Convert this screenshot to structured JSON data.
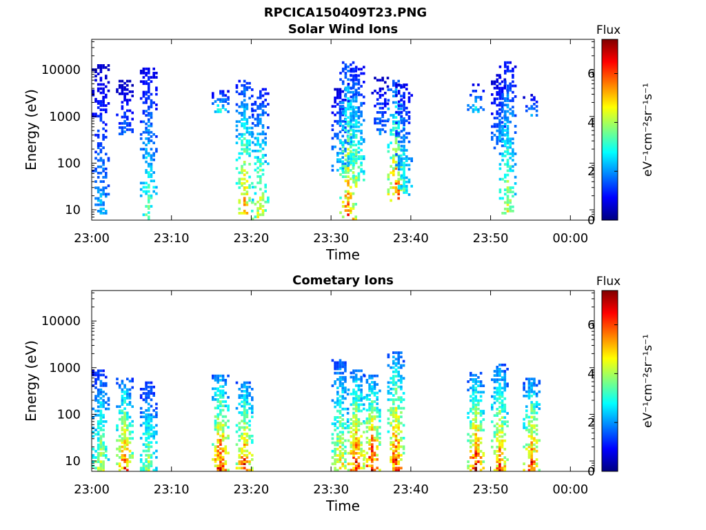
{
  "figure_title": "RPCICA150409T23.PNG",
  "colors": {
    "jet": [
      "#000080",
      "#0000ff",
      "#0080ff",
      "#00ffff",
      "#80ff80",
      "#ffff00",
      "#ff8000",
      "#ff0000",
      "#800000"
    ],
    "frame": "#000000",
    "background": "#ffffff"
  },
  "chart_data": [
    {
      "type": "heatmap",
      "title": "Solar Wind Ions",
      "xlabel": "Time",
      "ylabel": "Energy (eV)",
      "xlim": [
        "23:00",
        "00:03"
      ],
      "xticks": [
        "23:00",
        "23:10",
        "23:20",
        "23:30",
        "23:40",
        "23:50",
        "00:00"
      ],
      "yscale": "log",
      "ylim": [
        6,
        45000
      ],
      "yticks": [
        "10",
        "100",
        "1000",
        "10000"
      ],
      "colorbar": {
        "label": "Flux",
        "unit": "eV⁻¹cm⁻²sr⁻¹s⁻¹",
        "range": [
          0,
          7.4
        ],
        "ticks": [
          "0",
          "2",
          "4",
          "6"
        ]
      },
      "bursts": [
        {
          "time": "23:01",
          "e_min": 8,
          "e_max": 13000,
          "peak_flux": 2.6
        },
        {
          "time": "23:04",
          "e_min": 400,
          "e_max": 6000,
          "peak_flux": 2.0
        },
        {
          "time": "23:07",
          "e_min": 6,
          "e_max": 11000,
          "peak_flux": 3.8
        },
        {
          "time": "23:16",
          "e_min": 1200,
          "e_max": 4000,
          "peak_flux": 3.5
        },
        {
          "time": "23:19",
          "e_min": 8,
          "e_max": 6000,
          "peak_flux": 5.8
        },
        {
          "time": "23:21",
          "e_min": 6,
          "e_max": 4000,
          "peak_flux": 5.0
        },
        {
          "time": "23:31",
          "e_min": 60,
          "e_max": 4000,
          "peak_flux": 3.0
        },
        {
          "time": "23:32",
          "e_min": 6,
          "e_max": 15000,
          "peak_flux": 6.2
        },
        {
          "time": "23:33",
          "e_min": 30,
          "e_max": 12000,
          "peak_flux": 4.5
        },
        {
          "time": "23:36",
          "e_min": 400,
          "e_max": 7000,
          "peak_flux": 2.2
        },
        {
          "time": "23:38",
          "e_min": 15,
          "e_max": 6000,
          "peak_flux": 6.5
        },
        {
          "time": "23:39",
          "e_min": 20,
          "e_max": 5000,
          "peak_flux": 3.5
        },
        {
          "time": "23:48",
          "e_min": 1200,
          "e_max": 5000,
          "peak_flux": 3.2
        },
        {
          "time": "23:51",
          "e_min": 200,
          "e_max": 8000,
          "peak_flux": 2.5
        },
        {
          "time": "23:52",
          "e_min": 8,
          "e_max": 15000,
          "peak_flux": 4.6
        },
        {
          "time": "23:55",
          "e_min": 1000,
          "e_max": 3000,
          "peak_flux": 2.5
        }
      ]
    },
    {
      "type": "heatmap",
      "title": "Cometary Ions",
      "xlabel": "Time",
      "ylabel": "Energy (eV)",
      "xlim": [
        "23:00",
        "00:03"
      ],
      "xticks": [
        "23:00",
        "23:10",
        "23:20",
        "23:30",
        "23:40",
        "23:50",
        "00:00"
      ],
      "yscale": "log",
      "ylim": [
        6,
        45000
      ],
      "yticks": [
        "10",
        "100",
        "1000",
        "10000"
      ],
      "colorbar": {
        "label": "Flux",
        "unit": "eV⁻¹cm⁻²sr⁻¹s⁻¹",
        "range": [
          0,
          7.4
        ],
        "ticks": [
          "0",
          "2",
          "4",
          "6"
        ]
      },
      "bursts": [
        {
          "time": "23:01",
          "e_min": 6,
          "e_max": 900,
          "peak_flux": 4.8
        },
        {
          "time": "23:04",
          "e_min": 6,
          "e_max": 600,
          "peak_flux": 6.5
        },
        {
          "time": "23:07",
          "e_min": 6,
          "e_max": 500,
          "peak_flux": 4.5
        },
        {
          "time": "23:16",
          "e_min": 6,
          "e_max": 700,
          "peak_flux": 7.2
        },
        {
          "time": "23:19",
          "e_min": 6,
          "e_max": 500,
          "peak_flux": 6.8
        },
        {
          "time": "23:31",
          "e_min": 6,
          "e_max": 1500,
          "peak_flux": 5.5
        },
        {
          "time": "23:33",
          "e_min": 6,
          "e_max": 900,
          "peak_flux": 7.0
        },
        {
          "time": "23:35",
          "e_min": 6,
          "e_max": 700,
          "peak_flux": 7.3
        },
        {
          "time": "23:38",
          "e_min": 6,
          "e_max": 2200,
          "peak_flux": 7.0
        },
        {
          "time": "23:48",
          "e_min": 6,
          "e_max": 800,
          "peak_flux": 7.2
        },
        {
          "time": "23:51",
          "e_min": 6,
          "e_max": 1200,
          "peak_flux": 6.5
        },
        {
          "time": "23:55",
          "e_min": 6,
          "e_max": 600,
          "peak_flux": 6.8
        }
      ]
    }
  ]
}
